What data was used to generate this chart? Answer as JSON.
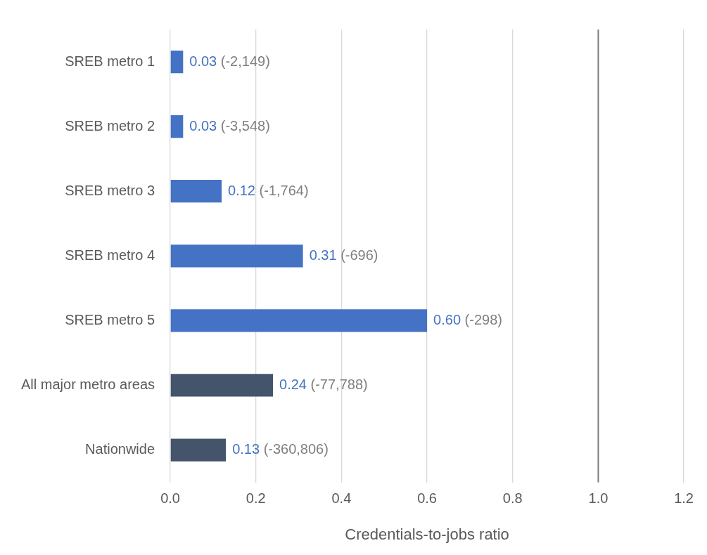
{
  "chart_data": {
    "type": "bar",
    "orientation": "horizontal",
    "xlabel": "Credentials-to-jobs ratio",
    "categories": [
      "SREB metro 1",
      "SREB metro 2",
      "SREB metro 3",
      "SREB metro 4",
      "SREB metro 5",
      "All major metro areas",
      "Nationwide"
    ],
    "values": [
      0.03,
      0.03,
      0.12,
      0.31,
      0.6,
      0.24,
      0.13
    ],
    "colors": [
      "#4472c4",
      "#4472c4",
      "#4472c4",
      "#4472c4",
      "#4472c4",
      "#44546a",
      "#44546a"
    ],
    "value_labels": [
      "0.03 (-2,149)",
      "0.03 (-3,548)",
      "0.12 (-1,764)",
      "0.31 (-696)",
      "0.60 (-298)",
      "0.24 (-77,788)",
      "0.13 (-360,806)"
    ],
    "xlim": [
      0,
      1.2
    ],
    "xticks": [
      {
        "value": 0,
        "label": "0.0"
      },
      {
        "value": 0.2,
        "label": "0.2"
      },
      {
        "value": 0.4,
        "label": "0.4"
      },
      {
        "value": 0.6,
        "label": "0.6"
      },
      {
        "value": 0.8,
        "label": "0.8"
      },
      {
        "value": 1,
        "label": "1.0"
      },
      {
        "value": 1.2,
        "label": "1.2"
      }
    ],
    "grid": "x",
    "ref_lines": [
      {
        "axis": "x",
        "value": 1,
        "color": "#7f7f7f"
      }
    ]
  }
}
